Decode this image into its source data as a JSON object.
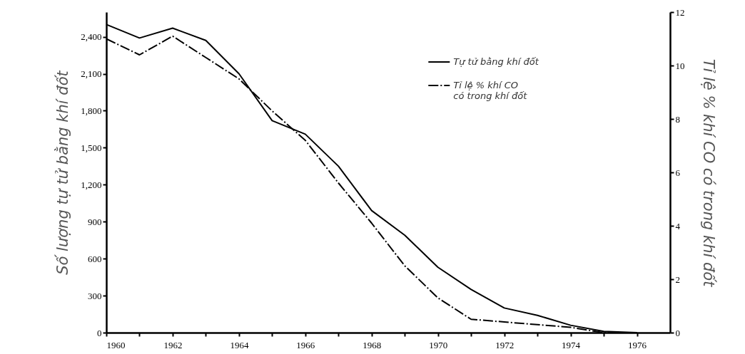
{
  "chart_data": {
    "type": "line",
    "ylabel": "Số lượng tự tử bằng khí đốt",
    "y2label": "Tỉ lệ % khí CO có trong khí đốt",
    "x": [
      1960,
      1961,
      1962,
      1963,
      1964,
      1965,
      1966,
      1967,
      1968,
      1969,
      1970,
      1971,
      1972,
      1973,
      1974,
      1975,
      1976
    ],
    "series": [
      {
        "name": "Tự tử bằng khí đốt",
        "color": "#000000",
        "line_style": "solid",
        "values": [
          2500,
          2390,
          2470,
          2370,
          2100,
          1720,
          1610,
          1350,
          990,
          790,
          530,
          350,
          200,
          140,
          60,
          10,
          0
        ]
      },
      {
        "name": "Tỉ lệ % khí CO\ncó trong khí đốt",
        "color": "#000000",
        "line_style": "dashed",
        "axis": "y2",
        "values": [
          11.0,
          10.4,
          11.1,
          10.3,
          9.5,
          8.3,
          7.2,
          5.6,
          4.1,
          2.5,
          1.3,
          0.5,
          0.4,
          0.3,
          0.2,
          0,
          0
        ]
      }
    ],
    "xlim": [
      1960,
      1977
    ],
    "xticks": [
      1960,
      {
        "value": 1961,
        "label": null
      },
      1962,
      {
        "value": 1963,
        "label": null
      },
      1964,
      {
        "value": 1965,
        "label": null
      },
      1966,
      {
        "value": 1967,
        "label": null
      },
      1968,
      {
        "value": 1969,
        "label": null
      },
      1970,
      {
        "value": 1971,
        "label": null
      },
      1972,
      {
        "value": 1973,
        "label": null
      },
      1974,
      {
        "value": 1975,
        "label": null
      },
      1976
    ],
    "ylim": [
      0,
      2600
    ],
    "yticks": [
      0,
      300,
      600,
      900,
      {
        "value": 1200,
        "label": "1,200"
      },
      {
        "value": 1500,
        "label": "1,500"
      },
      {
        "value": 1800,
        "label": "1,800"
      },
      {
        "value": 2100,
        "label": "2,100"
      },
      {
        "value": 2400,
        "label": "2,400"
      }
    ],
    "y2lim": [
      0,
      12
    ],
    "y2ticks": [
      0,
      2,
      4,
      6,
      8,
      10,
      12
    ],
    "grid": false,
    "legend": "top right",
    "marker": "none"
  }
}
